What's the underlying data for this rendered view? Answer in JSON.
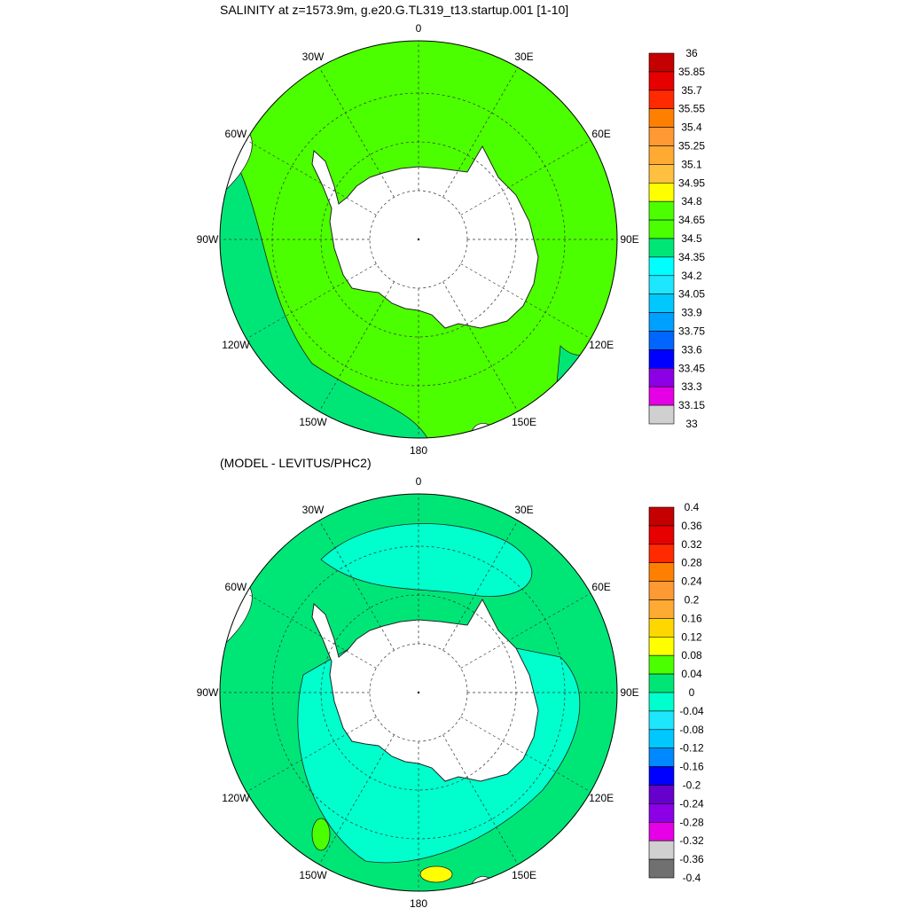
{
  "panels": [
    {
      "title": "SALINITY at z=1573.9m, g.e20.G.TL319_t13.startup.001 [1-10]",
      "lon_labels": [
        "0",
        "30E",
        "60E",
        "90E",
        "120E",
        "150E",
        "180",
        "150W",
        "120W",
        "90W",
        "60W",
        "30W"
      ],
      "colorbar": {
        "labels": [
          "36",
          "35.85",
          "35.7",
          "35.55",
          "35.4",
          "35.25",
          "35.1",
          "34.95",
          "34.8",
          "34.65",
          "34.5",
          "34.35",
          "34.2",
          "34.05",
          "33.9",
          "33.75",
          "33.6",
          "33.45",
          "33.3",
          "33.15",
          "33"
        ],
        "colors": [
          "#c40000",
          "#e60000",
          "#ff2a00",
          "#ff8000",
          "#ff9933",
          "#ffaa33",
          "#ffbf40",
          "#ffff00",
          "#4cff00",
          "#4cff00",
          "#00e676",
          "#00ffff",
          "#1ee6ff",
          "#00c8ff",
          "#00a0ff",
          "#0066ff",
          "#0000ff",
          "#8c00e6",
          "#e600e6",
          "#d0d0d0",
          "#707070"
        ]
      },
      "dominant_fill": "#4cff00",
      "secondary_fill": "#00e676"
    },
    {
      "title": "(MODEL - LEVITUS/PHC2)",
      "lon_labels": [
        "0",
        "30E",
        "60E",
        "90E",
        "120E",
        "150E",
        "180",
        "150W",
        "120W",
        "90W",
        "60W",
        "30W"
      ],
      "colorbar": {
        "labels": [
          "0.4",
          "0.36",
          "0.32",
          "0.28",
          "0.24",
          "0.2",
          "0.16",
          "0.12",
          "0.08",
          "0.04",
          "0",
          "-0.04",
          "-0.08",
          "-0.12",
          "-0.16",
          "-0.2",
          "-0.24",
          "-0.28",
          "-0.32",
          "-0.36",
          "-0.4"
        ],
        "colors": [
          "#c40000",
          "#e60000",
          "#ff2a00",
          "#ff8000",
          "#ff9933",
          "#ffaa33",
          "#ffd700",
          "#ffff00",
          "#4cff00",
          "#00e676",
          "#00ffcc",
          "#1ee6ff",
          "#00c8ff",
          "#0088ff",
          "#0000ff",
          "#6600cc",
          "#8c00e6",
          "#e600e6",
          "#d0d0d0",
          "#707070"
        ]
      },
      "dominant_fill": "#00e676",
      "secondary_fill": "#00ffcc"
    }
  ]
}
